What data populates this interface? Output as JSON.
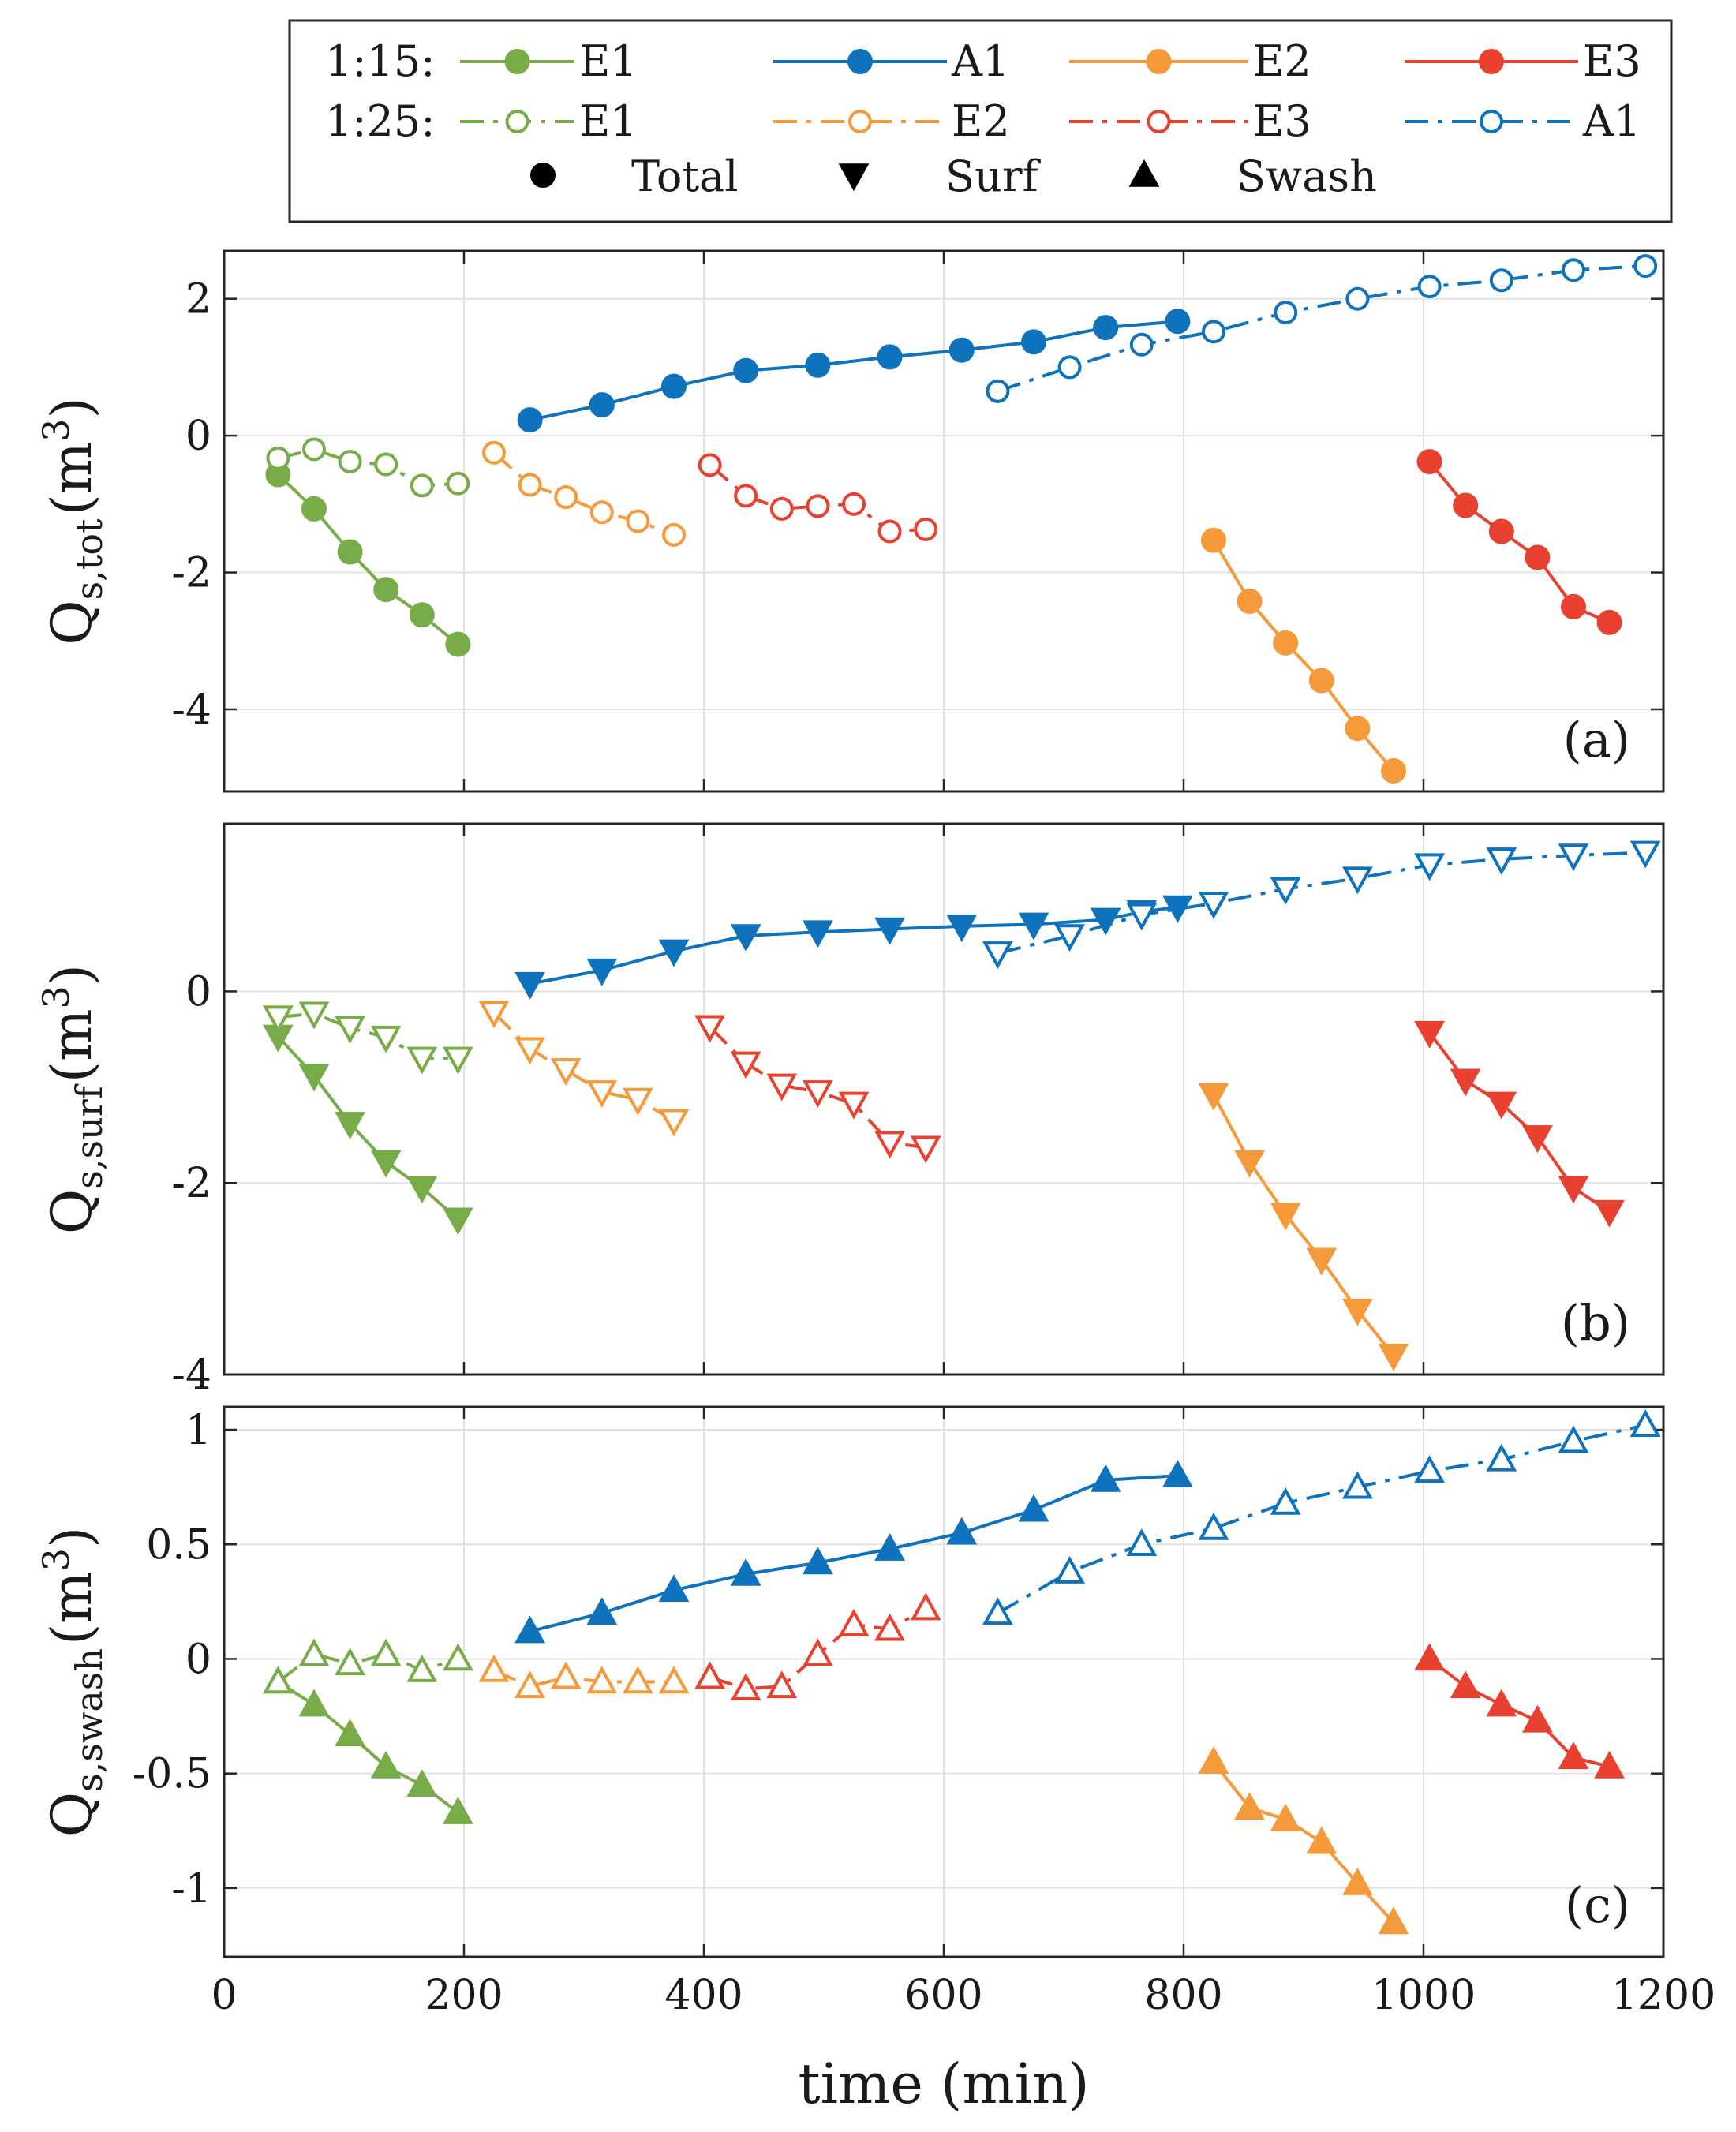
{
  "chart_data": {
    "type": "line",
    "xlabel": "time (min)",
    "xlim": [
      0,
      1200
    ],
    "xticks": [
      "0",
      "200",
      "400",
      "600",
      "800",
      "1000",
      "1200"
    ],
    "colors": {
      "E1": "#77ac48",
      "A1": "#0f72bd",
      "E2": "#f59a3b",
      "E3": "#e8412f"
    },
    "legend": {
      "rows": [
        {
          "label": "1:15:",
          "entries": [
            {
              "run": "E1",
              "text": "E1",
              "style": "solid"
            },
            {
              "run": "A1",
              "text": "A1",
              "style": "solid"
            },
            {
              "run": "E2",
              "text": "E2",
              "style": "solid"
            },
            {
              "run": "E3",
              "text": "E3",
              "style": "solid"
            }
          ]
        },
        {
          "label": "1:25:",
          "entries": [
            {
              "run": "E1",
              "text": "E1",
              "style": "dashed"
            },
            {
              "run": "E2",
              "text": "E2",
              "style": "dashed"
            },
            {
              "run": "E3",
              "text": "E3",
              "style": "dashed"
            },
            {
              "run": "A1",
              "text": "A1",
              "style": "dashed"
            }
          ]
        }
      ],
      "markers": [
        {
          "shape": "circle",
          "text": "Total"
        },
        {
          "shape": "tri-down",
          "text": "Surf"
        },
        {
          "shape": "tri-up",
          "text": "Swash"
        }
      ]
    },
    "panels": [
      {
        "id": "a",
        "label": "(a)",
        "ylabel": "Q",
        "ysub": "s,tot",
        "yunit": "(m",
        "ysup": "3",
        "yclose": ")",
        "ylim": [
          -5.2,
          2.7
        ],
        "yticks": [
          2,
          0,
          -2,
          -4
        ],
        "ytick_labels": [
          "2",
          "0",
          "-2",
          "-4"
        ],
        "marker": "circle",
        "series": [
          {
            "run": "E1",
            "slope": "1:15",
            "x": [
              45,
              75,
              105,
              135,
              165,
              195
            ],
            "y": [
              -0.57,
              -1.07,
              -1.7,
              -2.25,
              -2.62,
              -3.05
            ]
          },
          {
            "run": "E1",
            "slope": "1:25",
            "x": [
              45,
              75,
              105,
              135,
              165,
              195
            ],
            "y": [
              -0.33,
              -0.2,
              -0.38,
              -0.42,
              -0.73,
              -0.7
            ]
          },
          {
            "run": "E2",
            "slope": "1:25",
            "x": [
              225,
              255,
              285,
              315,
              345,
              375
            ],
            "y": [
              -0.25,
              -0.72,
              -0.9,
              -1.12,
              -1.25,
              -1.45
            ]
          },
          {
            "run": "A1",
            "slope": "1:15",
            "x": [
              255,
              315,
              375,
              435,
              495,
              555,
              615,
              675,
              735,
              795
            ],
            "y": [
              0.23,
              0.45,
              0.72,
              0.95,
              1.03,
              1.15,
              1.25,
              1.37,
              1.58,
              1.67
            ]
          },
          {
            "run": "E3",
            "slope": "1:25",
            "x": [
              405,
              435,
              465,
              495,
              525,
              555,
              585
            ],
            "y": [
              -0.43,
              -0.88,
              -1.07,
              -1.03,
              -1.0,
              -1.4,
              -1.37
            ]
          },
          {
            "run": "A1",
            "slope": "1:25",
            "x": [
              645,
              705,
              765,
              825,
              885,
              945,
              1005,
              1065,
              1125,
              1185
            ],
            "y": [
              0.65,
              1.0,
              1.33,
              1.52,
              1.8,
              2.0,
              2.18,
              2.27,
              2.42,
              2.48
            ]
          },
          {
            "run": "E2",
            "slope": "1:15",
            "x": [
              825,
              855,
              885,
              915,
              945,
              975
            ],
            "y": [
              -1.53,
              -2.42,
              -3.03,
              -3.58,
              -4.28,
              -4.9
            ]
          },
          {
            "run": "E3",
            "slope": "1:15",
            "x": [
              1005,
              1035,
              1065,
              1095,
              1125,
              1155
            ],
            "y": [
              -0.38,
              -1.02,
              -1.4,
              -1.78,
              -2.5,
              -2.73
            ]
          }
        ]
      },
      {
        "id": "b",
        "label": "(b)",
        "ylabel": "Q",
        "ysub": "s,surf",
        "yunit": "(m",
        "ysup": "3",
        "yclose": ")",
        "ylim": [
          -4,
          1.75
        ],
        "yticks": [
          0,
          -2,
          -4
        ],
        "ytick_labels": [
          "0",
          "-2",
          "-4"
        ],
        "marker": "tri-down",
        "series": [
          {
            "run": "E1",
            "slope": "1:15",
            "x": [
              45,
              75,
              105,
              135,
              165,
              195
            ],
            "y": [
              -0.47,
              -0.88,
              -1.38,
              -1.78,
              -2.05,
              -2.38
            ]
          },
          {
            "run": "E1",
            "slope": "1:25",
            "x": [
              45,
              75,
              105,
              135,
              165,
              195
            ],
            "y": [
              -0.27,
              -0.23,
              -0.38,
              -0.48,
              -0.7,
              -0.7
            ]
          },
          {
            "run": "E2",
            "slope": "1:25",
            "x": [
              225,
              255,
              285,
              315,
              345,
              375
            ],
            "y": [
              -0.22,
              -0.6,
              -0.82,
              -1.05,
              -1.13,
              -1.35
            ]
          },
          {
            "run": "A1",
            "slope": "1:15",
            "x": [
              255,
              315,
              375,
              435,
              495,
              555,
              615,
              675,
              735,
              765,
              795
            ],
            "y": [
              0.08,
              0.22,
              0.42,
              0.58,
              0.62,
              0.65,
              0.68,
              0.7,
              0.75,
              0.83,
              0.88
            ]
          },
          {
            "run": "E3",
            "slope": "1:25",
            "x": [
              405,
              435,
              465,
              495,
              525,
              555,
              585
            ],
            "y": [
              -0.37,
              -0.75,
              -0.98,
              -1.05,
              -1.17,
              -1.58,
              -1.63
            ]
          },
          {
            "run": "A1",
            "slope": "1:25",
            "x": [
              645,
              705,
              765,
              825,
              885,
              945,
              1005,
              1065,
              1125,
              1185
            ],
            "y": [
              0.4,
              0.58,
              0.8,
              0.92,
              1.07,
              1.18,
              1.32,
              1.38,
              1.42,
              1.45
            ]
          },
          {
            "run": "E2",
            "slope": "1:15",
            "x": [
              825,
              855,
              885,
              915,
              945,
              975
            ],
            "y": [
              -1.08,
              -1.78,
              -2.33,
              -2.8,
              -3.33,
              -3.8
            ]
          },
          {
            "run": "E3",
            "slope": "1:15",
            "x": [
              1005,
              1035,
              1065,
              1095,
              1125,
              1155
            ],
            "y": [
              -0.43,
              -0.93,
              -1.17,
              -1.52,
              -2.05,
              -2.3
            ]
          }
        ]
      },
      {
        "id": "c",
        "label": "(c)",
        "ylabel": "Q",
        "ysub": "s,swash",
        "yunit": "(m",
        "ysup": "3",
        "yclose": ")",
        "ylim": [
          -1.3,
          1.1
        ],
        "yticks": [
          1,
          0.5,
          0,
          -0.5,
          -1
        ],
        "ytick_labels": [
          "1",
          "0.5",
          "0",
          "-0.5",
          "-1"
        ],
        "marker": "tri-up",
        "series": [
          {
            "run": "E1",
            "slope": "1:15",
            "x": [
              45,
              75,
              105,
              135,
              165,
              195
            ],
            "y": [
              -0.1,
              -0.2,
              -0.33,
              -0.47,
              -0.55,
              -0.67
            ]
          },
          {
            "run": "E1",
            "slope": "1:25",
            "x": [
              45,
              75,
              105,
              135,
              165,
              195
            ],
            "y": [
              -0.1,
              0.02,
              -0.02,
              0.02,
              -0.05,
              0.0
            ]
          },
          {
            "run": "E2",
            "slope": "1:25",
            "x": [
              225,
              255,
              285,
              315,
              345,
              375
            ],
            "y": [
              -0.05,
              -0.12,
              -0.08,
              -0.1,
              -0.1,
              -0.1
            ]
          },
          {
            "run": "A1",
            "slope": "1:15",
            "x": [
              255,
              315,
              375,
              435,
              495,
              555,
              615,
              675,
              735,
              795
            ],
            "y": [
              0.12,
              0.2,
              0.3,
              0.37,
              0.42,
              0.48,
              0.55,
              0.65,
              0.78,
              0.8
            ]
          },
          {
            "run": "E3",
            "slope": "1:25",
            "x": [
              405,
              435,
              465,
              495,
              525,
              555,
              585
            ],
            "y": [
              -0.08,
              -0.13,
              -0.12,
              0.02,
              0.15,
              0.13,
              0.22
            ]
          },
          {
            "run": "A1",
            "slope": "1:25",
            "x": [
              645,
              705,
              765,
              825,
              885,
              945,
              1005,
              1065,
              1125,
              1185
            ],
            "y": [
              0.2,
              0.38,
              0.5,
              0.57,
              0.68,
              0.75,
              0.82,
              0.87,
              0.95,
              1.02
            ]
          },
          {
            "run": "E2",
            "slope": "1:15",
            "x": [
              825,
              855,
              885,
              915,
              945,
              975
            ],
            "y": [
              -0.45,
              -0.65,
              -0.7,
              -0.8,
              -0.98,
              -1.15
            ]
          },
          {
            "run": "E3",
            "slope": "1:15",
            "x": [
              1005,
              1035,
              1065,
              1095,
              1125,
              1155
            ],
            "y": [
              0.0,
              -0.12,
              -0.2,
              -0.27,
              -0.43,
              -0.47
            ]
          }
        ]
      }
    ]
  }
}
